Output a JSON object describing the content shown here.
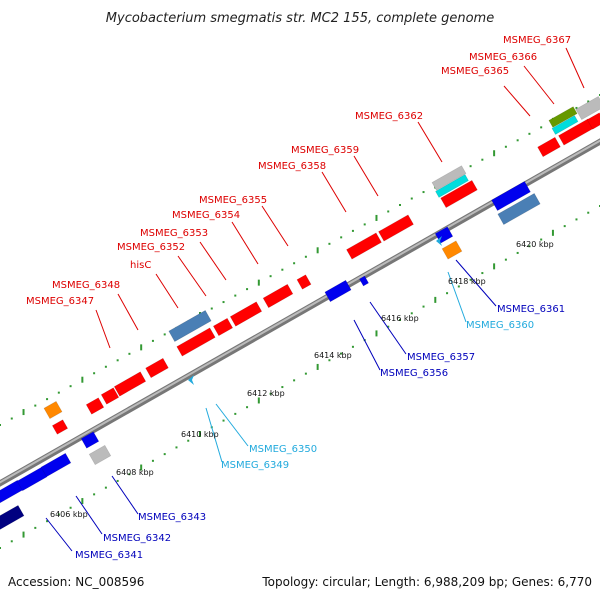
{
  "title": "Mycobacterium smegmatis str. MC2 155, complete genome",
  "footer": {
    "accession": "Accession: NC_008596",
    "summary": "Topology: circular; Length: 6,988,209 bp; Genes: 6,770"
  },
  "colors": {
    "forward_gene": "#ff0000",
    "reverse_gene": "#0000ee",
    "reverse_gene_dark": "#000080",
    "forward_label": "#dd0000",
    "reverse_label": "#0000bb",
    "reverse_label_cyan": "#22aadd",
    "steelblue_feature": "#4a7fb5",
    "grey_feature": "#bbbbbb",
    "orange_feature": "#ff8800",
    "cyan_feature": "#00dddd",
    "olive_feature": "#669900",
    "backbone": "#888888",
    "forward_ticks": "#339933"
  },
  "ticks": [
    {
      "label": "6406 kbp"
    },
    {
      "label": "6408 kbp"
    },
    {
      "label": "6410 kbp"
    },
    {
      "label": "6412 kbp"
    },
    {
      "label": "6414 kbp"
    },
    {
      "label": "6416 kbp"
    },
    {
      "label": "6418 kbp"
    },
    {
      "label": "6420 kbp"
    }
  ],
  "forward_labels": [
    {
      "text": "MSMEG_6347"
    },
    {
      "text": "MSMEG_6348"
    },
    {
      "text": "hisC"
    },
    {
      "text": "MSMEG_6352"
    },
    {
      "text": "MSMEG_6353"
    },
    {
      "text": "MSMEG_6354"
    },
    {
      "text": "MSMEG_6355"
    },
    {
      "text": "MSMEG_6358"
    },
    {
      "text": "MSMEG_6359"
    },
    {
      "text": "MSMEG_6362"
    },
    {
      "text": "MSMEG_6365"
    },
    {
      "text": "MSMEG_6366"
    },
    {
      "text": "MSMEG_6367"
    }
  ],
  "reverse_labels": [
    {
      "text": "MSMEG_6341",
      "tone": "blue"
    },
    {
      "text": "MSMEG_6342",
      "tone": "blue"
    },
    {
      "text": "MSMEG_6343",
      "tone": "blue"
    },
    {
      "text": "MSMEG_6349",
      "tone": "cyan"
    },
    {
      "text": "MSMEG_6350",
      "tone": "cyan"
    },
    {
      "text": "MSMEG_6356",
      "tone": "blue"
    },
    {
      "text": "MSMEG_6357",
      "tone": "blue"
    },
    {
      "text": "MSMEG_6360",
      "tone": "cyan"
    },
    {
      "text": "MSMEG_6361",
      "tone": "blue"
    }
  ]
}
